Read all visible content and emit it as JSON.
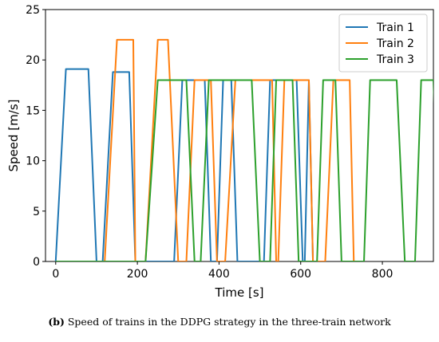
{
  "chart_data": {
    "type": "line",
    "title": "",
    "xlabel": "Time [s]",
    "ylabel": "Speed [m/s]",
    "xlim": [
      -25,
      925
    ],
    "ylim": [
      0,
      25
    ],
    "xticks": [
      0,
      200,
      400,
      600,
      800
    ],
    "yticks": [
      0,
      5,
      10,
      15,
      20,
      25
    ],
    "grid": false,
    "legend_position": "top-right",
    "series": [
      {
        "name": "Train 1",
        "color": "#1f77b4",
        "points": [
          [
            0,
            0
          ],
          [
            25,
            19.1
          ],
          [
            80,
            19.1
          ],
          [
            100,
            0
          ],
          [
            115,
            0
          ],
          [
            140,
            18.8
          ],
          [
            180,
            18.8
          ],
          [
            195,
            0
          ],
          [
            290,
            0
          ],
          [
            310,
            18
          ],
          [
            365,
            18
          ],
          [
            380,
            0
          ],
          [
            395,
            0
          ],
          [
            410,
            18
          ],
          [
            430,
            18
          ],
          [
            445,
            0
          ],
          [
            510,
            0
          ],
          [
            525,
            18
          ],
          [
            590,
            18
          ],
          [
            605,
            0
          ],
          [
            610,
            0
          ],
          [
            620,
            18
          ],
          [
            630,
            0
          ]
        ]
      },
      {
        "name": "Train 2",
        "color": "#ff7f0e",
        "points": [
          [
            0,
            0
          ],
          [
            120,
            0
          ],
          [
            150,
            22
          ],
          [
            190,
            22
          ],
          [
            195,
            0
          ],
          [
            220,
            0
          ],
          [
            250,
            22
          ],
          [
            275,
            22
          ],
          [
            300,
            0
          ],
          [
            320,
            0
          ],
          [
            340,
            18
          ],
          [
            380,
            18
          ],
          [
            395,
            0
          ],
          [
            415,
            0
          ],
          [
            440,
            18
          ],
          [
            530,
            18
          ],
          [
            540,
            0
          ],
          [
            545,
            0
          ],
          [
            560,
            18
          ],
          [
            620,
            18
          ],
          [
            630,
            0
          ],
          [
            660,
            0
          ],
          [
            680,
            18
          ],
          [
            720,
            18
          ],
          [
            730,
            0
          ]
        ]
      },
      {
        "name": "Train 3",
        "color": "#2ca02c",
        "points": [
          [
            0,
            0
          ],
          [
            220,
            0
          ],
          [
            250,
            18
          ],
          [
            320,
            18
          ],
          [
            340,
            0
          ],
          [
            355,
            0
          ],
          [
            375,
            18
          ],
          [
            480,
            18
          ],
          [
            500,
            0
          ],
          [
            525,
            0
          ],
          [
            540,
            18
          ],
          [
            580,
            18
          ],
          [
            595,
            0
          ],
          [
            640,
            0
          ],
          [
            655,
            18
          ],
          [
            685,
            18
          ],
          [
            700,
            0
          ],
          [
            755,
            0
          ],
          [
            770,
            18
          ],
          [
            835,
            18
          ],
          [
            855,
            0
          ],
          [
            880,
            0
          ],
          [
            895,
            18
          ],
          [
            925,
            18
          ],
          [
            940,
            0
          ],
          [
            960,
            0
          ]
        ]
      }
    ]
  },
  "caption": {
    "label": "(b)",
    "text": " Speed of trains in the DDPG strategy in the three-train network"
  }
}
